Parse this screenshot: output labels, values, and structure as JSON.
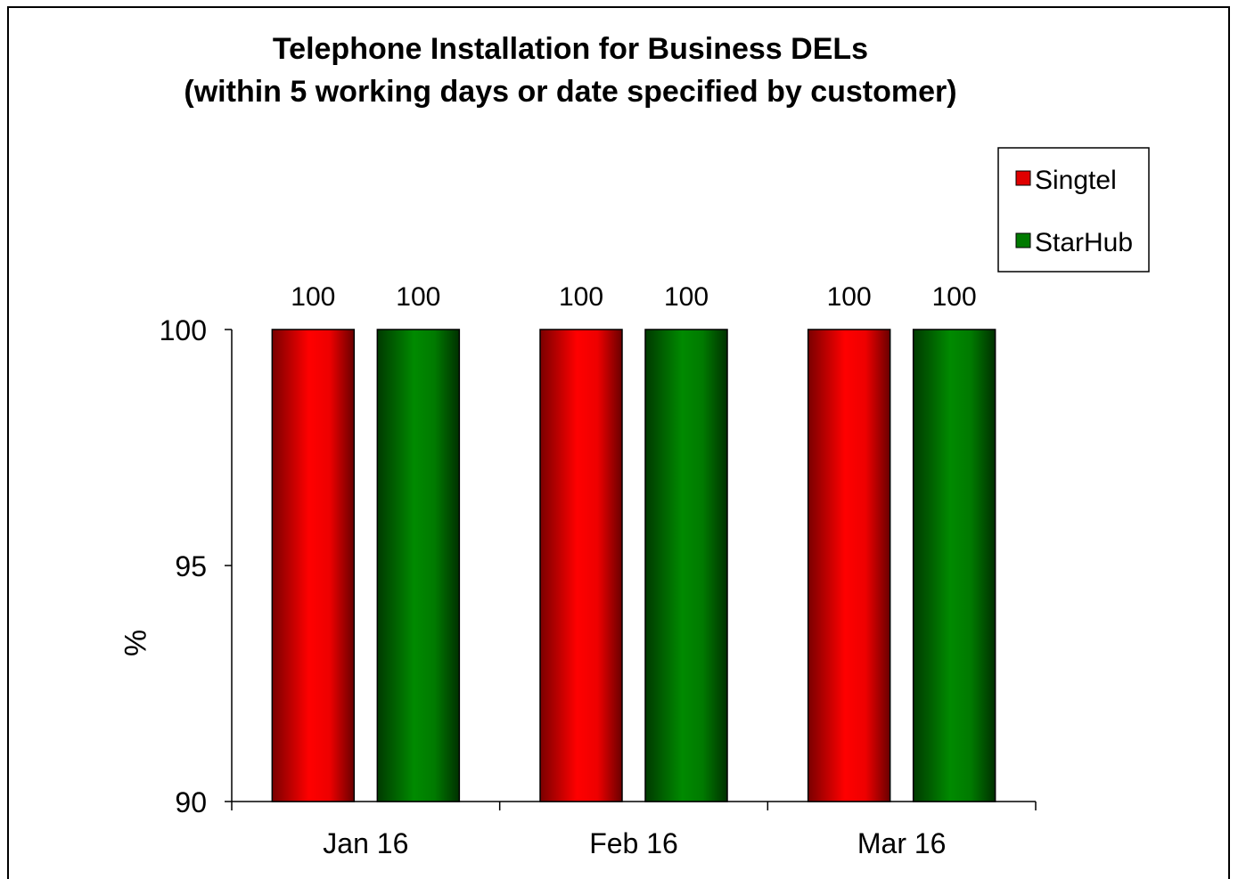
{
  "chart_data": {
    "type": "bar",
    "title_lines": [
      "Telephone Installation  for Business DELs",
      "(within 5 working days or date specified  by customer)"
    ],
    "xlabel": "",
    "ylabel": "%",
    "ylim": [
      90,
      100
    ],
    "yticks": [
      "90",
      "95",
      "100"
    ],
    "categories": [
      "Jan 16",
      "Feb 16",
      "Mar 16"
    ],
    "series": [
      {
        "name": "Singtel",
        "color": "#e00000",
        "values": [
          100,
          100,
          100
        ],
        "labels": [
          "100",
          "100",
          "100"
        ]
      },
      {
        "name": "StarHub",
        "color": "#007a00",
        "values": [
          100,
          100,
          100
        ],
        "labels": [
          "100",
          "100",
          "100"
        ]
      }
    ],
    "legend_position": "top-right",
    "grid": false
  }
}
